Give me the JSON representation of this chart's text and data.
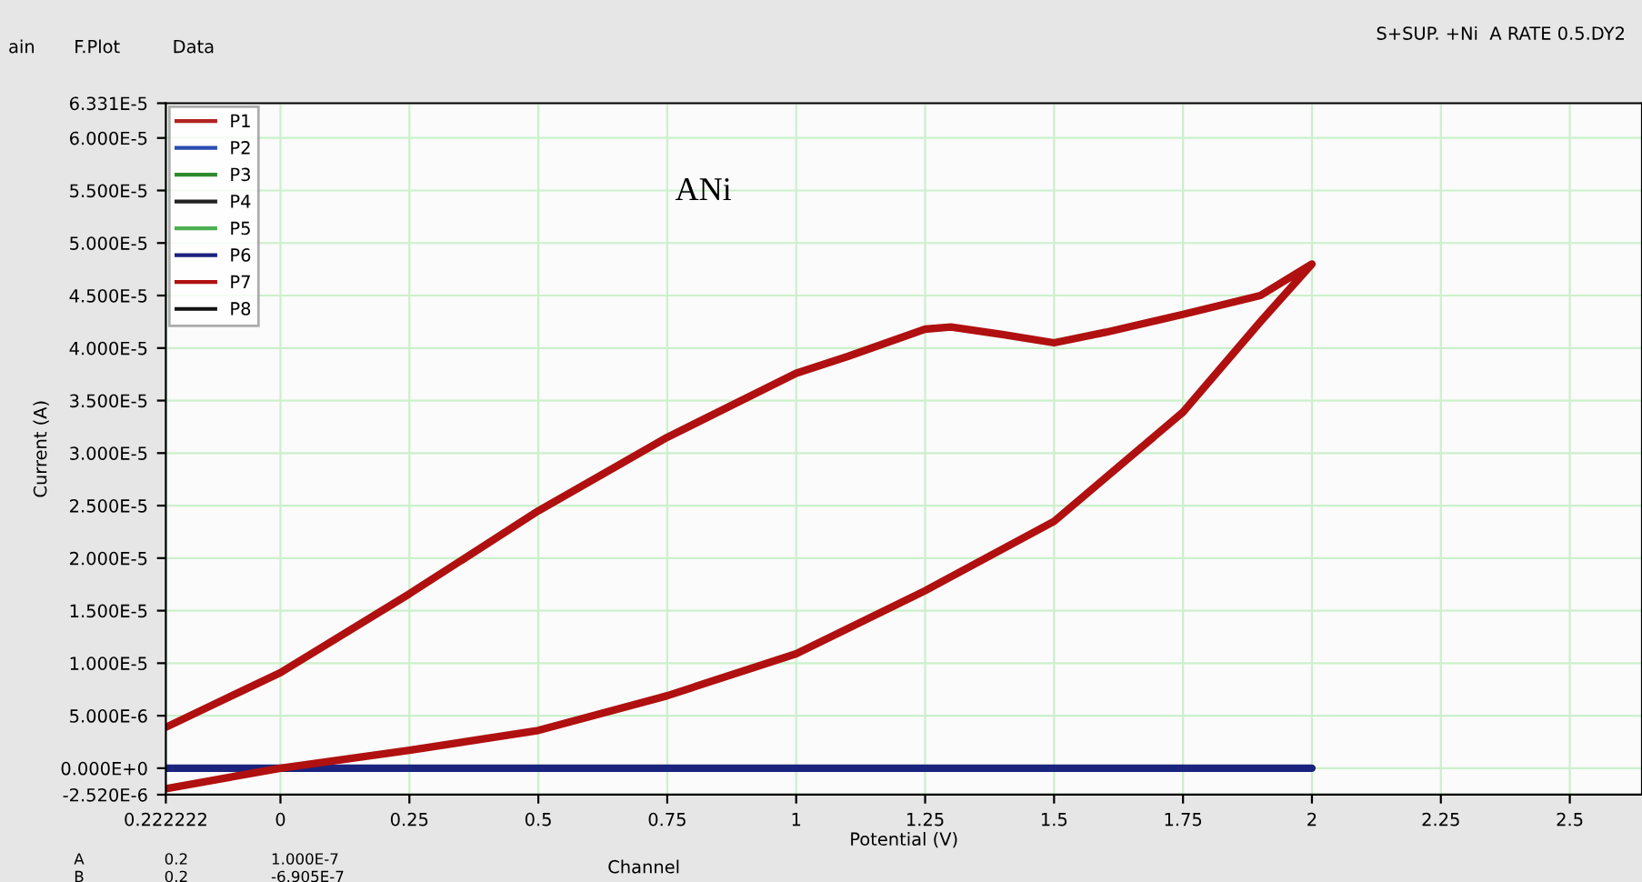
{
  "chart_data": {
    "type": "line",
    "xlabel": "Potential (V)",
    "ylabel": "Current (A)",
    "annotations": [
      "ANi",
      "ain",
      "F.Plot",
      "Data",
      "S+SUP. +Ni  A RATE 0.5.DY2",
      "A",
      "0.2",
      "1.000E-7",
      "B",
      "0.2",
      "-6.905E-7",
      "Channel"
    ],
    "xlim": [
      -0.222222,
      2.64
    ],
    "xticks": [
      {
        "value": -0.222222,
        "label": "0.222222"
      },
      0,
      0.25,
      0.5,
      0.75,
      1,
      1.25,
      1.5,
      1.75,
      2,
      2.25,
      2.5
    ],
    "ylim": [
      -2.52e-06,
      6.331e-05
    ],
    "yticks": [
      {
        "value": -2.52e-06,
        "label": "-2.520E-6"
      },
      {
        "value": 0,
        "label": "0.000E+0"
      },
      {
        "value": 5e-06,
        "label": "5.000E-6"
      },
      {
        "value": 1e-05,
        "label": "1.000E-5"
      },
      {
        "value": 1.5e-05,
        "label": "1.500E-5"
      },
      {
        "value": 2e-05,
        "label": "2.000E-5"
      },
      {
        "value": 2.5e-05,
        "label": "2.500E-5"
      },
      {
        "value": 3e-05,
        "label": "3.000E-5"
      },
      {
        "value": 3.5e-05,
        "label": "3.500E-5"
      },
      {
        "value": 4e-05,
        "label": "4.000E-5"
      },
      {
        "value": 4.5e-05,
        "label": "4.500E-5"
      },
      {
        "value": 5e-05,
        "label": "5.000E-5"
      },
      {
        "value": 5.5e-05,
        "label": "5.500E-5"
      },
      {
        "value": 6e-05,
        "label": "6.000E-5"
      },
      {
        "value": 6.331e-05,
        "label": "6.331E-5"
      }
    ],
    "grid": true,
    "legend": "top left",
    "marker": "none",
    "line_style": "solid",
    "series": [
      {
        "name": "P1",
        "color": "#b22222"
      },
      {
        "name": "P2",
        "color": "#2a4db0"
      },
      {
        "name": "P3",
        "color": "#2e8b2e"
      },
      {
        "name": "P4",
        "color": "#222222"
      },
      {
        "name": "P5",
        "color": "#4caf50"
      },
      {
        "name": "P6",
        "color": "#1a237e",
        "x": [
          -0.222222,
          2
        ],
        "values": [
          0,
          0
        ]
      },
      {
        "name": "P7",
        "color": "#b01010",
        "x": [
          -0.222222,
          0,
          0.25,
          0.5,
          0.75,
          1,
          1.1,
          1.25,
          1.3,
          1.4,
          1.5,
          1.6,
          1.75,
          1.9,
          2,
          1.9,
          1.75,
          1.5,
          1.25,
          1,
          0.75,
          0.5,
          0.25,
          0,
          -0.222222
        ],
        "values": [
          3.9e-06,
          9.1e-06,
          1.66e-05,
          2.45e-05,
          3.15e-05,
          3.76e-05,
          3.92e-05,
          4.18e-05,
          4.2e-05,
          4.13e-05,
          4.05e-05,
          4.15e-05,
          4.32e-05,
          4.5e-05,
          4.8e-05,
          4.25e-05,
          3.39e-05,
          2.35e-05,
          1.69e-05,
          1.09e-05,
          6.9e-06,
          3.6e-06,
          1.7e-06,
          0,
          -1.95e-06
        ]
      },
      {
        "name": "P8",
        "color": "#111111"
      }
    ]
  }
}
